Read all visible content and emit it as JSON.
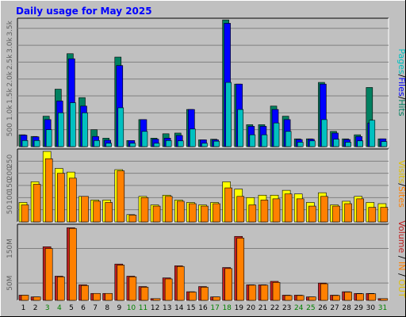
{
  "title": "Daily usage for May 2025",
  "colors": {
    "background": "#c0c0c0",
    "plot_bg": "#c0c0c0",
    "pages": "#00c0c0",
    "files": "#0000ff",
    "hits": "#008060",
    "visits": "#ffff00",
    "sites": "#ff8000",
    "kbytes": "#c02020",
    "in": "#ff8000",
    "out": "#e0c000",
    "title": "#0000ff",
    "day_weekday": "#000000",
    "day_weekend": "#008000"
  },
  "chart_data": [
    {
      "type": "bar",
      "name": "top",
      "ylabels": [
        "500",
        "1.0k",
        "1.5k",
        "2.0k",
        "2.5k",
        "3.0k",
        "3.5k"
      ],
      "yticks": [
        500,
        1000,
        1500,
        2000,
        2500,
        3000,
        3500
      ],
      "ylim": [
        0,
        3800
      ],
      "legend": [
        "Pages",
        "Files",
        "Hits"
      ],
      "x": [
        1,
        2,
        3,
        4,
        5,
        6,
        7,
        8,
        9,
        10,
        11,
        12,
        13,
        14,
        15,
        16,
        17,
        18,
        19,
        20,
        21,
        22,
        23,
        24,
        25,
        26,
        27,
        28,
        29,
        30,
        31
      ],
      "series": [
        {
          "name": "Hits",
          "values": [
            350,
            300,
            900,
            1700,
            2750,
            1450,
            500,
            250,
            2650,
            180,
            800,
            250,
            380,
            400,
            1100,
            200,
            220,
            3750,
            1850,
            650,
            650,
            1200,
            900,
            230,
            230,
            1900,
            450,
            230,
            350,
            1750,
            230
          ]
        },
        {
          "name": "Files",
          "values": [
            340,
            290,
            800,
            1350,
            2600,
            1200,
            300,
            190,
            2400,
            180,
            800,
            220,
            250,
            330,
            1100,
            200,
            200,
            3650,
            1850,
            600,
            600,
            1100,
            800,
            210,
            220,
            1850,
            400,
            210,
            300,
            700,
            230
          ]
        },
        {
          "name": "Pages",
          "values": [
            180,
            180,
            500,
            1000,
            1300,
            1000,
            180,
            100,
            1150,
            100,
            450,
            100,
            180,
            170,
            520,
            100,
            160,
            1900,
            1100,
            350,
            350,
            700,
            450,
            130,
            170,
            800,
            220,
            130,
            170,
            780,
            150
          ]
        }
      ]
    },
    {
      "type": "bar",
      "name": "middle",
      "ylabels": [
        "50",
        "100",
        "150",
        "200",
        "250"
      ],
      "yticks": [
        50,
        100,
        150,
        200,
        250
      ],
      "ylim": [
        0,
        300
      ],
      "legend": [
        "Visits",
        "Sites"
      ],
      "x": [
        1,
        2,
        3,
        4,
        5,
        6,
        7,
        8,
        9,
        10,
        11,
        12,
        13,
        14,
        15,
        16,
        17,
        18,
        19,
        20,
        21,
        22,
        23,
        24,
        25,
        26,
        27,
        28,
        29,
        30,
        31
      ],
      "series": [
        {
          "name": "Visits",
          "values": [
            80,
            165,
            290,
            220,
            205,
            105,
            90,
            90,
            215,
            30,
            105,
            70,
            110,
            90,
            80,
            70,
            80,
            165,
            135,
            100,
            110,
            110,
            130,
            115,
            80,
            120,
            70,
            85,
            105,
            80,
            75
          ]
        },
        {
          "name": "Sites",
          "values": [
            70,
            155,
            260,
            200,
            180,
            105,
            85,
            80,
            210,
            28,
            100,
            65,
            105,
            85,
            75,
            65,
            75,
            140,
            105,
            70,
            90,
            95,
            115,
            95,
            65,
            105,
            65,
            75,
            95,
            60,
            60
          ]
        }
      ]
    },
    {
      "type": "bar",
      "name": "bottom",
      "ylabels": [
        "50M",
        "150M"
      ],
      "yticks": [
        50,
        150
      ],
      "ylim": [
        0,
        220
      ],
      "legend": [
        "Volume",
        "IN",
        "OUT"
      ],
      "x": [
        1,
        2,
        3,
        4,
        5,
        6,
        7,
        8,
        9,
        10,
        11,
        12,
        13,
        14,
        15,
        16,
        17,
        18,
        19,
        20,
        21,
        22,
        23,
        24,
        25,
        26,
        27,
        28,
        29,
        30,
        31
      ],
      "series": [
        {
          "name": "Volume",
          "values": [
            15,
            10,
            155,
            70,
            210,
            45,
            20,
            20,
            105,
            70,
            40,
            5,
            65,
            100,
            25,
            40,
            10,
            95,
            185,
            45,
            45,
            55,
            15,
            15,
            10,
            50,
            15,
            25,
            20,
            20,
            5
          ]
        },
        {
          "name": "IN",
          "values": [
            15,
            10,
            150,
            68,
            208,
            43,
            20,
            20,
            102,
            68,
            38,
            5,
            62,
            98,
            24,
            38,
            10,
            92,
            180,
            44,
            44,
            52,
            14,
            14,
            10,
            48,
            14,
            24,
            19,
            19,
            5
          ]
        }
      ]
    }
  ],
  "day_labels": [
    "1",
    "2",
    "3",
    "4",
    "5",
    "6",
    "7",
    "8",
    "9",
    "10",
    "11",
    "12",
    "13",
    "14",
    "15",
    "16",
    "17",
    "18",
    "19",
    "20",
    "21",
    "22",
    "23",
    "24",
    "25",
    "26",
    "27",
    "28",
    "29",
    "30",
    "31"
  ],
  "weekend_days": [
    3,
    4,
    10,
    11,
    17,
    18,
    24,
    25,
    31
  ]
}
